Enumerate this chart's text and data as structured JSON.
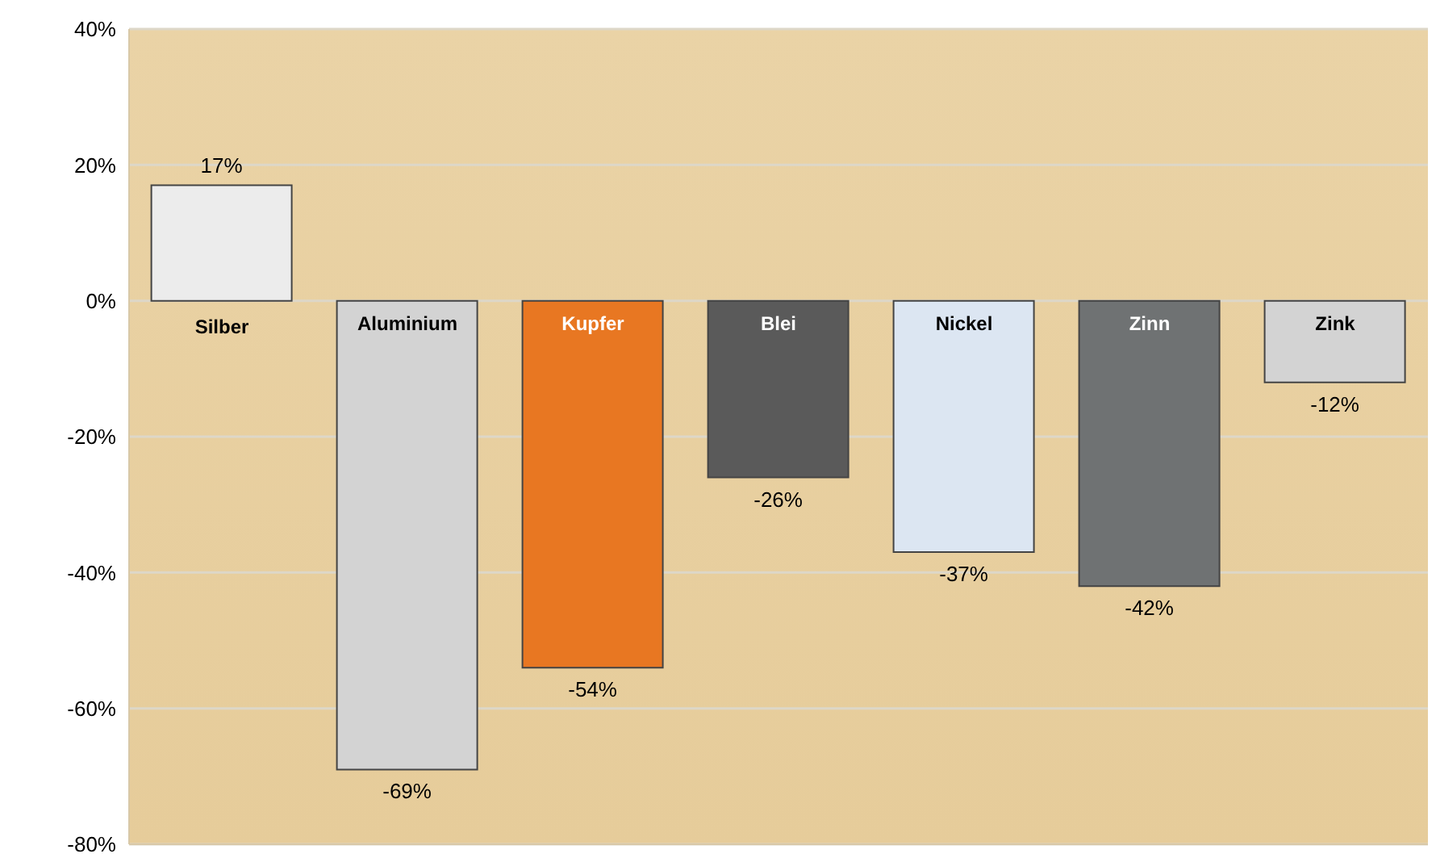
{
  "chart_data": {
    "type": "bar",
    "categories": [
      "Silber",
      "Aluminium",
      "Kupfer",
      "Blei",
      "Nickel",
      "Zinn",
      "Zink"
    ],
    "values": [
      17,
      -69,
      -54,
      -26,
      -37,
      -42,
      -12
    ],
    "colors": [
      "#ececec",
      "#d3d3d3",
      "#e87722",
      "#5a5a5a",
      "#dce6f2",
      "#6f7273",
      "#d3d3d3"
    ],
    "value_labels": [
      "17%",
      "-69%",
      "-54%",
      "-26%",
      "-37%",
      "-42%",
      "-12%"
    ],
    "ylim": [
      -80,
      40
    ],
    "yticks": [
      {
        "value": -80,
        "label": "-80%"
      },
      {
        "value": -60,
        "label": "-60%"
      },
      {
        "value": -40,
        "label": "-40%"
      },
      {
        "value": -20,
        "label": "-20%"
      },
      {
        "value": 0,
        "label": "0%"
      },
      {
        "value": 20,
        "label": "20%"
      },
      {
        "value": 40,
        "label": "40%"
      }
    ],
    "grid": "y"
  }
}
